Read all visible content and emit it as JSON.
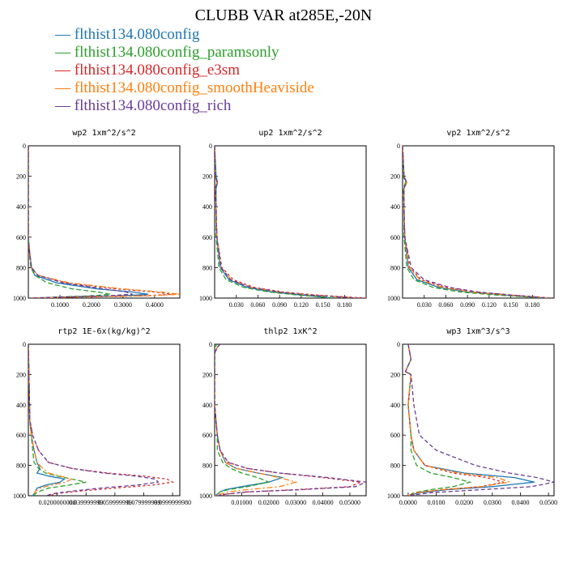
{
  "title": "CLUBB VAR at285E,-20N",
  "legend": [
    {
      "label": "flthist134.080config",
      "color": "#1f77b4"
    },
    {
      "label": "flthist134.080config_paramsonly",
      "color": "#2ca02c"
    },
    {
      "label": "flthist134.080config_e3sm",
      "color": "#d62728"
    },
    {
      "label": "flthist134.080config_smoothHeaviside",
      "color": "#ff7f0e"
    },
    {
      "label": "flthist134.080config_rich",
      "color": "#6a3d9a"
    }
  ],
  "chart_data": [
    {
      "type": "line",
      "title": "wp2   1xm^2/s^2",
      "xlim": [
        0,
        0.48
      ],
      "ylim": [
        1000,
        0
      ],
      "xticks": [
        0.1,
        0.2,
        0.3,
        0.4
      ],
      "xtick_labels": [
        "0.1000",
        "0.2000",
        "0.3000",
        "0.4000"
      ],
      "yticks": [
        0,
        200,
        400,
        600,
        800,
        1000
      ],
      "ytick_labels": [
        "0",
        "200",
        "400",
        "600",
        "800",
        "1000"
      ],
      "y": [
        0,
        600,
        700,
        800,
        850,
        900,
        940,
        960,
        975,
        985,
        993,
        1000
      ],
      "series": [
        {
          "values": [
            0,
            0,
            0.004,
            0.01,
            0.02,
            0.09,
            0.22,
            0.33,
            0.38,
            0.3,
            0.12,
            0.01
          ]
        },
        {
          "values": [
            0,
            0,
            0.003,
            0.008,
            0.02,
            0.06,
            0.14,
            0.22,
            0.26,
            0.2,
            0.09,
            0.01
          ]
        },
        {
          "values": [
            0,
            0,
            0.004,
            0.01,
            0.03,
            0.12,
            0.28,
            0.4,
            0.46,
            0.36,
            0.14,
            0.01
          ]
        },
        {
          "values": [
            0,
            0,
            0.004,
            0.011,
            0.03,
            0.13,
            0.3,
            0.42,
            0.48,
            0.38,
            0.15,
            0.01
          ]
        },
        {
          "values": [
            0,
            0,
            0.004,
            0.01,
            0.03,
            0.11,
            0.24,
            0.31,
            0.33,
            0.25,
            0.1,
            0.01
          ]
        }
      ]
    },
    {
      "type": "line",
      "title": "up2   1xm^2/s^2",
      "xlim": [
        0,
        0.21
      ],
      "ylim": [
        1000,
        0
      ],
      "xticks": [
        0.03,
        0.06,
        0.09,
        0.12,
        0.15,
        0.18
      ],
      "xtick_labels": [
        "0.030",
        "0.060",
        "0.090",
        "0.120",
        "0.150",
        "0.180"
      ],
      "yticks": [
        0,
        200,
        400,
        600,
        800,
        1000
      ],
      "ytick_labels": [
        "0",
        "200",
        "400",
        "600",
        "800",
        "1000"
      ],
      "y": [
        0,
        200,
        240,
        280,
        400,
        600,
        800,
        880,
        930,
        960,
        980,
        993,
        1000
      ],
      "series": [
        {
          "values": [
            0,
            0.002,
            0.004,
            0.002,
            0.002,
            0.003,
            0.008,
            0.02,
            0.045,
            0.08,
            0.12,
            0.15,
            0.16
          ]
        },
        {
          "values": [
            0,
            0.001,
            0.003,
            0.001,
            0.002,
            0.002,
            0.006,
            0.016,
            0.04,
            0.075,
            0.115,
            0.15,
            0.165
          ]
        },
        {
          "values": [
            0,
            0.001,
            0.003,
            0.001,
            0.002,
            0.003,
            0.01,
            0.026,
            0.055,
            0.095,
            0.14,
            0.185,
            0.21
          ]
        },
        {
          "values": [
            0,
            0.001,
            0.003,
            0.001,
            0.002,
            0.003,
            0.009,
            0.023,
            0.05,
            0.09,
            0.135,
            0.178,
            0.2
          ]
        },
        {
          "values": [
            0,
            0.001,
            0.004,
            0.001,
            0.002,
            0.003,
            0.009,
            0.022,
            0.05,
            0.09,
            0.13,
            0.175,
            0.2
          ]
        }
      ]
    },
    {
      "type": "line",
      "title": "vp2   1xm^2/s^2",
      "xlim": [
        0,
        0.21
      ],
      "ylim": [
        1000,
        0
      ],
      "xticks": [
        0.03,
        0.06,
        0.09,
        0.12,
        0.15,
        0.18
      ],
      "xtick_labels": [
        "0.030",
        "0.060",
        "0.090",
        "0.120",
        "0.150",
        "0.180"
      ],
      "yticks": [
        0,
        200,
        400,
        600,
        800,
        1000
      ],
      "ytick_labels": [
        "0",
        "200",
        "400",
        "600",
        "800",
        "1000"
      ],
      "y": [
        0,
        200,
        240,
        280,
        400,
        600,
        800,
        880,
        930,
        960,
        980,
        993,
        1000
      ],
      "series": [
        {
          "values": [
            0,
            0.002,
            0.006,
            0.002,
            0.002,
            0.003,
            0.008,
            0.02,
            0.05,
            0.09,
            0.14,
            0.18,
            0.19
          ]
        },
        {
          "values": [
            0,
            0.001,
            0.004,
            0.001,
            0.002,
            0.002,
            0.006,
            0.016,
            0.042,
            0.08,
            0.13,
            0.175,
            0.195
          ]
        },
        {
          "values": [
            0,
            0.002,
            0.005,
            0.002,
            0.002,
            0.003,
            0.01,
            0.026,
            0.06,
            0.1,
            0.15,
            0.19,
            0.205
          ]
        },
        {
          "values": [
            0,
            0.002,
            0.006,
            0.002,
            0.002,
            0.003,
            0.009,
            0.024,
            0.055,
            0.095,
            0.145,
            0.185,
            0.2
          ]
        },
        {
          "values": [
            0,
            0.002,
            0.005,
            0.002,
            0.002,
            0.003,
            0.012,
            0.03,
            0.065,
            0.105,
            0.15,
            0.185,
            0.2
          ]
        }
      ]
    },
    {
      "type": "line",
      "title": "rtp2   1E-6x(kg/kg)^2",
      "xlim": [
        0,
        0.105
      ],
      "ylim": [
        1000,
        0
      ],
      "xticks": [
        0.02,
        0.04,
        0.06,
        0.08,
        0.1
      ],
      "xtick_labels": [
        "0.0200000000",
        "0.039999999",
        "0.059999999",
        "0.079999999",
        "0.0999999980"
      ],
      "yticks": [
        0,
        200,
        400,
        600,
        800,
        1000
      ],
      "ytick_labels": [
        "0",
        "200",
        "400",
        "600",
        "800",
        "1000"
      ],
      "y": [
        0,
        500,
        600,
        700,
        780,
        820,
        850,
        870,
        890,
        910,
        930,
        950,
        970,
        985,
        1000
      ],
      "series": [
        {
          "values": [
            0,
            0.001,
            0.002,
            0.004,
            0.006,
            0.008,
            0.006,
            0.014,
            0.025,
            0.022,
            0.012,
            0.006,
            0.005,
            0.004,
            0.003
          ]
        },
        {
          "values": [
            0,
            0.001,
            0.002,
            0.003,
            0.004,
            0.007,
            0.012,
            0.02,
            0.03,
            0.04,
            0.028,
            0.014,
            0.008,
            0.005,
            0.004
          ]
        },
        {
          "values": [
            0,
            0.001,
            0.003,
            0.007,
            0.014,
            0.03,
            0.055,
            0.08,
            0.096,
            0.1,
            0.086,
            0.06,
            0.035,
            0.02,
            0.015
          ]
        },
        {
          "values": [
            0,
            0.001,
            0.002,
            0.004,
            0.006,
            0.01,
            0.014,
            0.022,
            0.03,
            0.026,
            0.016,
            0.008,
            0.005,
            0.004,
            0.003
          ]
        },
        {
          "values": [
            0,
            0.001,
            0.003,
            0.007,
            0.014,
            0.03,
            0.052,
            0.074,
            0.088,
            0.09,
            0.075,
            0.05,
            0.03,
            0.018,
            0.012
          ]
        }
      ]
    },
    {
      "type": "line",
      "title": "thlp2   1xK^2",
      "xlim": [
        0,
        0.056
      ],
      "ylim": [
        1000,
        0
      ],
      "xticks": [
        0.01,
        0.02,
        0.03,
        0.04,
        0.05
      ],
      "xtick_labels": [
        "0.01000",
        "0.02000",
        "0.03000",
        "0.04000",
        "0.05000"
      ],
      "yticks": [
        0,
        200,
        400,
        600,
        800,
        1000
      ],
      "ytick_labels": [
        "0",
        "200",
        "400",
        "600",
        "800",
        "1000"
      ],
      "y": [
        0,
        20,
        60,
        100,
        400,
        600,
        700,
        780,
        820,
        850,
        880,
        910,
        940,
        960,
        975,
        990,
        1000
      ],
      "series": [
        {
          "values": [
            0.002,
            0.001,
            0,
            0,
            0,
            0.001,
            0.002,
            0.004,
            0.008,
            0.016,
            0.025,
            0.02,
            0.01,
            0.004,
            0.002,
            0.001,
            0
          ]
        },
        {
          "values": [
            0.001,
            0,
            0,
            0,
            0,
            0.001,
            0.001,
            0.003,
            0.006,
            0.01,
            0.016,
            0.02,
            0.012,
            0.005,
            0.002,
            0.001,
            0
          ]
        },
        {
          "values": [
            0.002,
            0.001,
            0,
            0,
            0,
            0.001,
            0.002,
            0.005,
            0.012,
            0.024,
            0.04,
            0.054,
            0.05,
            0.03,
            0.012,
            0.004,
            0.001
          ]
        },
        {
          "values": [
            0.002,
            0.001,
            0,
            0,
            0,
            0.001,
            0.002,
            0.004,
            0.008,
            0.016,
            0.024,
            0.03,
            0.024,
            0.012,
            0.005,
            0.002,
            0
          ]
        },
        {
          "values": [
            0.002,
            0.001,
            0,
            0,
            0,
            0.001,
            0.002,
            0.005,
            0.012,
            0.024,
            0.042,
            0.056,
            0.052,
            0.032,
            0.012,
            0.004,
            0.001
          ]
        }
      ]
    },
    {
      "type": "line",
      "title": "wp3   1xm^3/s^3",
      "xlim": [
        -0.002,
        0.052
      ],
      "ylim": [
        1000,
        0
      ],
      "xticks": [
        0,
        0.01,
        0.02,
        0.03,
        0.04,
        0.05
      ],
      "xtick_labels": [
        "0.0000",
        "0.0100",
        "0.0200",
        "0.0300",
        "0.0400",
        "0.0500"
      ],
      "yticks": [
        0,
        200,
        400,
        600,
        800,
        1000
      ],
      "ytick_labels": [
        "0",
        "200",
        "400",
        "600",
        "800",
        "1000"
      ],
      "y": [
        0,
        100,
        180,
        200,
        400,
        600,
        700,
        800,
        850,
        880,
        910,
        940,
        960,
        980,
        1000
      ],
      "series": [
        {
          "values": [
            0,
            0.001,
            -0.001,
            0.001,
            0,
            0.001,
            0.002,
            0.006,
            0.02,
            0.038,
            0.045,
            0.03,
            0.014,
            0.004,
            0
          ]
        },
        {
          "values": [
            0,
            0.001,
            -0.001,
            0.001,
            0,
            0.001,
            0.001,
            0.003,
            0.008,
            0.016,
            0.022,
            0.016,
            0.008,
            0.002,
            0
          ]
        },
        {
          "values": [
            0,
            0.001,
            -0.001,
            0.001,
            0,
            0.001,
            0.002,
            0.006,
            0.016,
            0.028,
            0.034,
            0.026,
            0.012,
            0.003,
            0
          ]
        },
        {
          "values": [
            0,
            0.001,
            -0.001,
            0.001,
            0,
            0.001,
            0.002,
            0.006,
            0.018,
            0.032,
            0.036,
            0.026,
            0.012,
            0.003,
            0
          ]
        },
        {
          "values": [
            0,
            0.001,
            -0.001,
            0.001,
            0.002,
            0.004,
            0.01,
            0.024,
            0.036,
            0.046,
            0.052,
            0.044,
            0.026,
            0.008,
            0
          ]
        }
      ]
    }
  ]
}
